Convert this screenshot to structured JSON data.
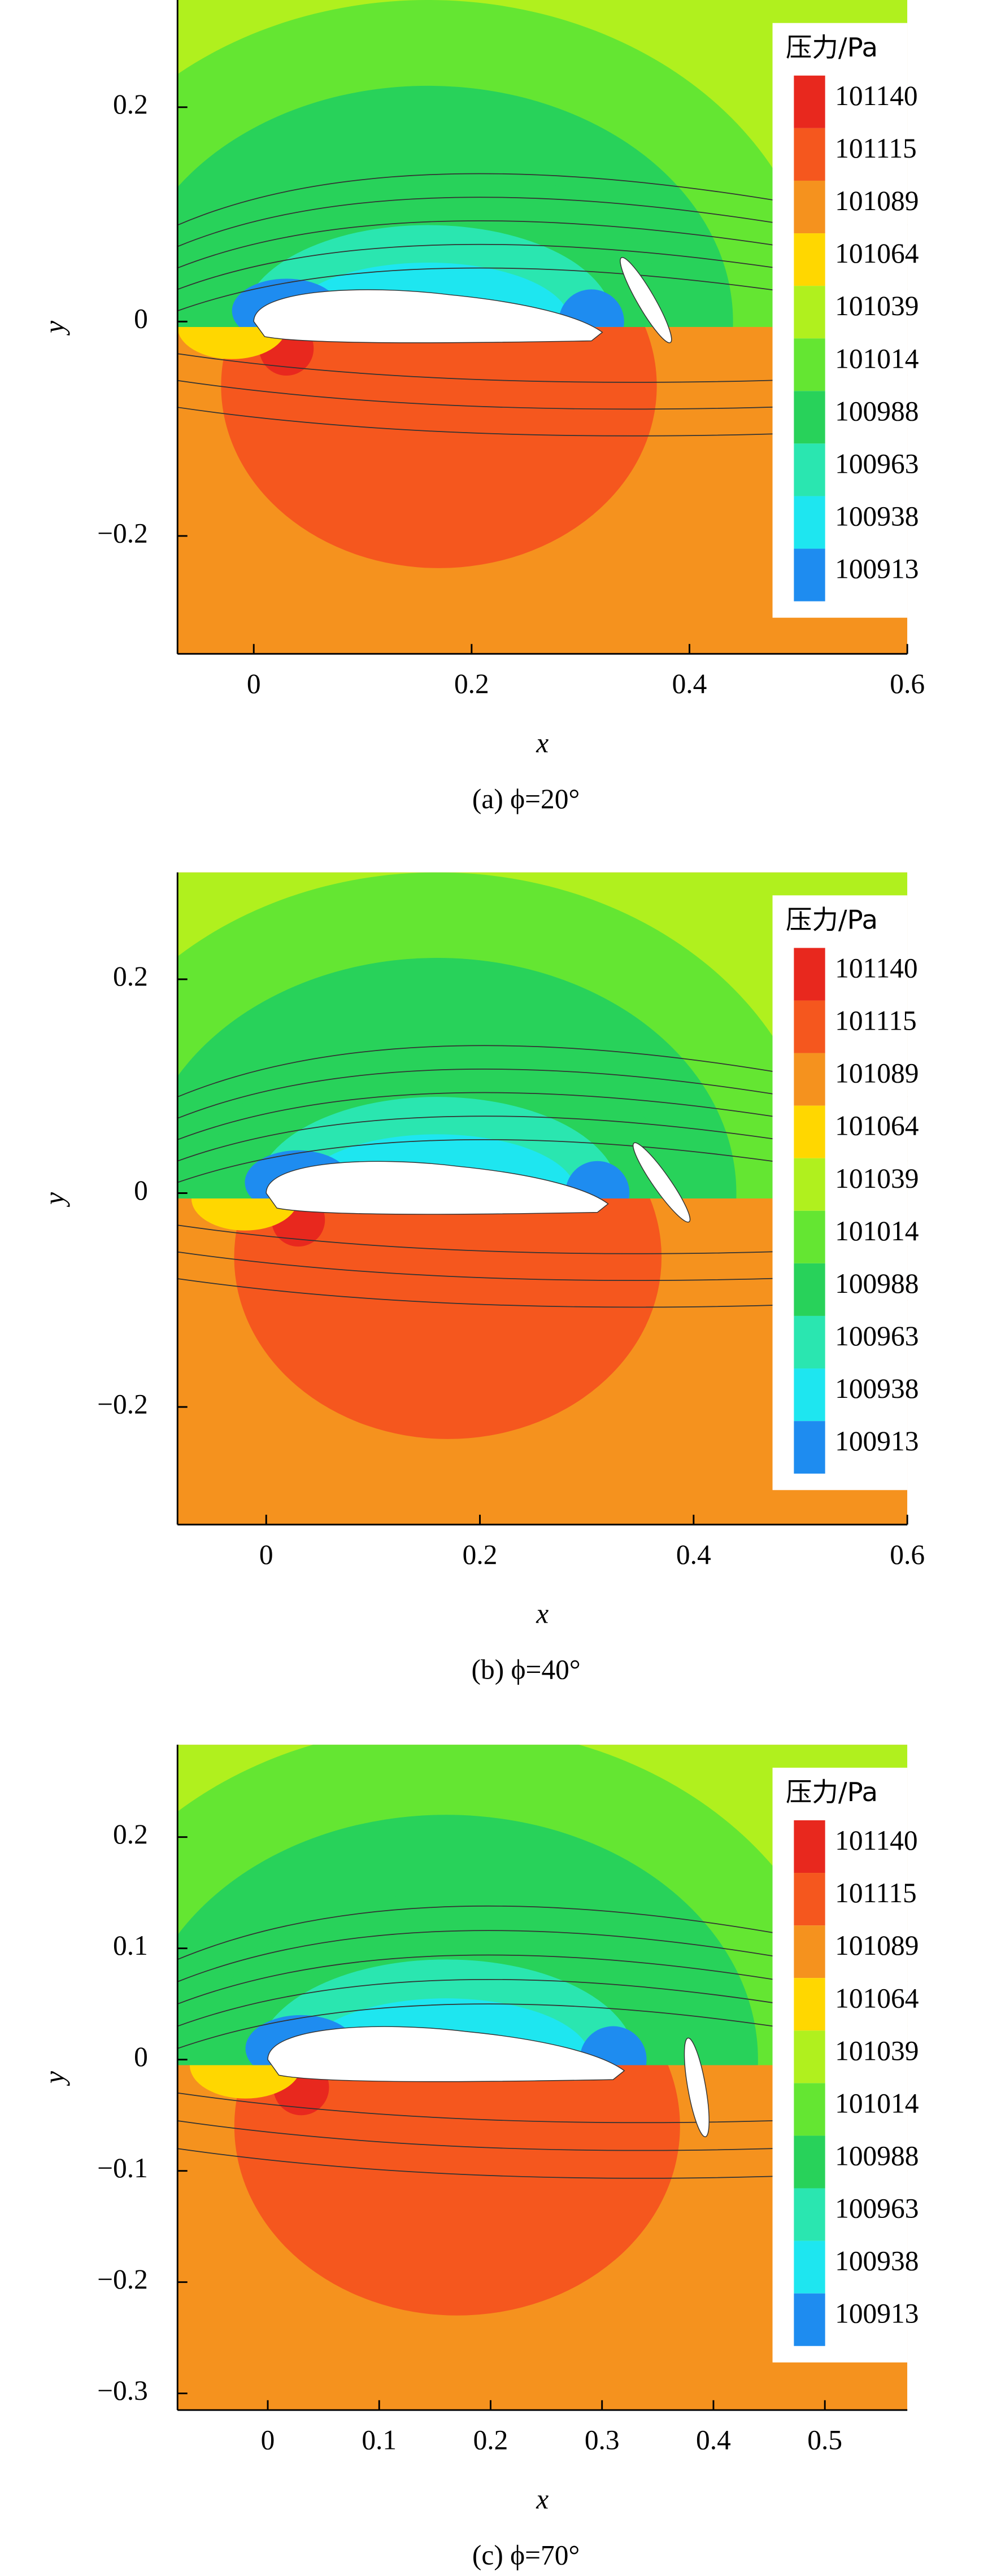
{
  "chart_data": [
    {
      "type": "contour",
      "xlabel": "x",
      "ylabel": "y",
      "xlim": [
        -0.07,
        0.6
      ],
      "ylim": [
        -0.31,
        0.3
      ],
      "xticks": [
        0,
        0.2,
        0.4,
        0.6
      ],
      "yticks": [
        {
          "value": -0.2,
          "label": "−0.2"
        },
        0,
        0.2
      ],
      "legend_title": "压力/Pa",
      "levels": [
        101140,
        101115,
        101089,
        101064,
        101039,
        101014,
        100988,
        100963,
        100938,
        100913
      ],
      "level_colors": [
        "#e8281e",
        "#f5571e",
        "#f5921e",
        "#ffd700",
        "#b0f01e",
        "#64e632",
        "#28d25a",
        "#2ae6b0",
        "#1ee6f0",
        "#1e8cf0"
      ],
      "caption": "(a) ϕ=20°"
    },
    {
      "type": "contour",
      "xlabel": "x",
      "ylabel": "y",
      "xlim": [
        -0.083,
        0.6
      ],
      "ylim": [
        -0.31,
        0.3
      ],
      "xticks": [
        0,
        0.2,
        0.4,
        0.6
      ],
      "yticks": [
        {
          "value": -0.2,
          "label": "−0.2"
        },
        0,
        0.2
      ],
      "legend_title": "压力/Pa",
      "levels": [
        101140,
        101115,
        101089,
        101064,
        101039,
        101014,
        100988,
        100963,
        100938,
        100913
      ],
      "level_colors": [
        "#e8281e",
        "#f5571e",
        "#f5921e",
        "#ffd700",
        "#b0f01e",
        "#64e632",
        "#28d25a",
        "#2ae6b0",
        "#1ee6f0",
        "#1e8cf0"
      ],
      "caption": "(b) ϕ=40°"
    },
    {
      "type": "contour",
      "xlabel": "x",
      "ylabel": "y",
      "xlim": [
        -0.081,
        0.574
      ],
      "ylim": [
        -0.315,
        0.283
      ],
      "xticks": [
        0,
        0.1,
        0.2,
        0.3,
        0.4,
        0.5
      ],
      "yticks": [
        {
          "value": -0.3,
          "label": "−0.3"
        },
        {
          "value": -0.2,
          "label": "−0.2"
        },
        {
          "value": -0.1,
          "label": "−0.1"
        },
        0,
        0.1,
        0.2
      ],
      "legend_title": "压力/Pa",
      "levels": [
        101140,
        101115,
        101089,
        101064,
        101039,
        101014,
        100988,
        100963,
        100938,
        100913
      ],
      "level_colors": [
        "#e8281e",
        "#f5571e",
        "#f5921e",
        "#ffd700",
        "#b0f01e",
        "#64e632",
        "#28d25a",
        "#2ae6b0",
        "#1ee6f0",
        "#1e8cf0"
      ],
      "caption": "(c) ϕ=70°"
    }
  ]
}
